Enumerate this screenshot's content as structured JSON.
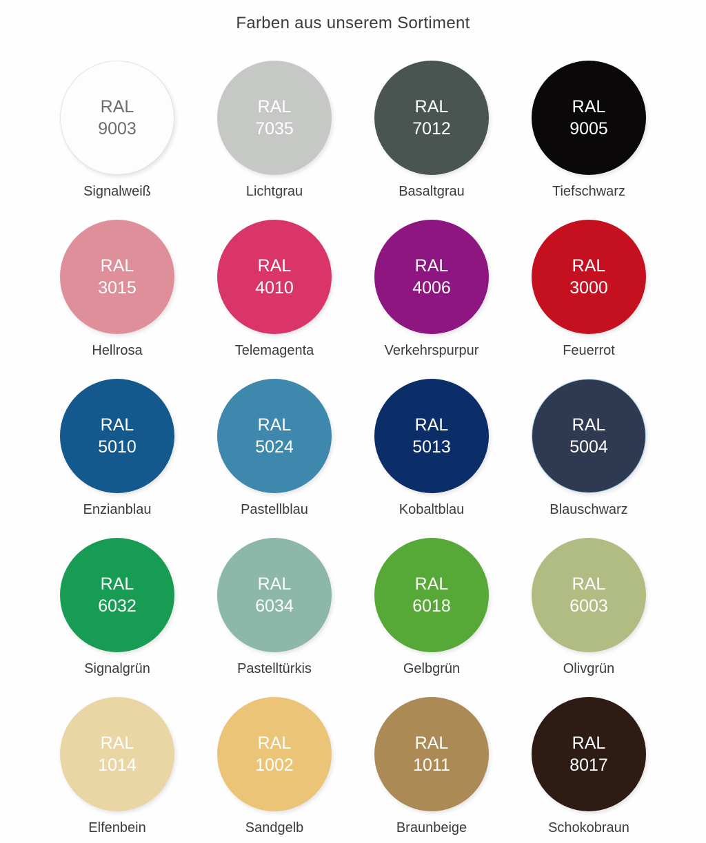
{
  "title": "Farben aus unserem Sortiment",
  "palette": {
    "label_prefix": "RAL",
    "swatches": [
      {
        "code": "9003",
        "name": "Signalweiß",
        "color": "#fdfdfd",
        "text_color": "#6e6e6e",
        "border_color": "#e2e2e2"
      },
      {
        "code": "7035",
        "name": "Lichtgrau",
        "color": "#c6c8c5",
        "text_color": "#ffffff"
      },
      {
        "code": "7012",
        "name": "Basaltgrau",
        "color": "#4a5450",
        "text_color": "#ffffff"
      },
      {
        "code": "9005",
        "name": "Tiefschwarz",
        "color": "#0a0809",
        "text_color": "#ffffff"
      },
      {
        "code": "3015",
        "name": "Hellrosa",
        "color": "#de8f99",
        "text_color": "#ffffff"
      },
      {
        "code": "4010",
        "name": "Telemagenta",
        "color": "#d93569",
        "text_color": "#ffffff"
      },
      {
        "code": "4006",
        "name": "Verkehrspurpur",
        "color": "#8d1681",
        "text_color": "#ffffff"
      },
      {
        "code": "3000",
        "name": "Feuerrot",
        "color": "#c5111f",
        "text_color": "#ffffff"
      },
      {
        "code": "5010",
        "name": "Enzianblau",
        "color": "#14598d",
        "text_color": "#ffffff"
      },
      {
        "code": "5024",
        "name": "Pastellblau",
        "color": "#3e88ae",
        "text_color": "#ffffff"
      },
      {
        "code": "5013",
        "name": "Kobaltblau",
        "color": "#0b2e69",
        "text_color": "#ffffff"
      },
      {
        "code": "5004",
        "name": "Blauschwarz",
        "color": "#2f3951",
        "text_color": "#ffffff",
        "border_color": "#a5d4ec"
      },
      {
        "code": "6032",
        "name": "Signalgrün",
        "color": "#189b53",
        "text_color": "#ffffff"
      },
      {
        "code": "6034",
        "name": "Pastelltürkis",
        "color": "#8cb7a9",
        "text_color": "#ffffff"
      },
      {
        "code": "6018",
        "name": "Gelbgrün",
        "color": "#57a937",
        "text_color": "#ffffff"
      },
      {
        "code": "6003",
        "name": "Olivgrün",
        "color": "#b1bc83",
        "text_color": "#ffffff"
      },
      {
        "code": "1014",
        "name": "Elfenbein",
        "color": "#e9d6a4",
        "text_color": "#ffffff"
      },
      {
        "code": "1002",
        "name": "Sandgelb",
        "color": "#ebc478",
        "text_color": "#ffffff"
      },
      {
        "code": "1011",
        "name": "Braunbeige",
        "color": "#ac8a55",
        "text_color": "#ffffff"
      },
      {
        "code": "8017",
        "name": "Schokobraun",
        "color": "#2d1b14",
        "text_color": "#ffffff"
      }
    ]
  }
}
